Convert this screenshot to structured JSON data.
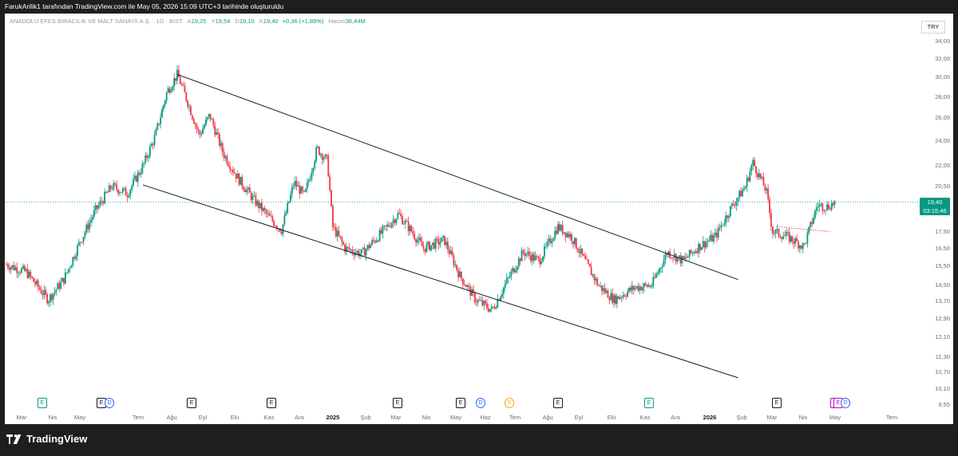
{
  "header": {
    "caption": "FarukArilik1 tarafından TradingView.com ile May 05, 2026 15:09 UTC+3 tarihinde oluşturuldu"
  },
  "legend": {
    "symbol": "ANADOLU EFES BIRACILIK VE MALT SANAYİİ A.Ş. · 1G · BIST",
    "open_label": "A",
    "open": "19,25",
    "high_label": "Y",
    "high": "19,54",
    "low_label": "D",
    "low": "19,10",
    "close_label": "K",
    "close": "19,40",
    "change": "+0,36 (+1,89%)",
    "volume_label": "Hacim",
    "volume": "36,44M"
  },
  "currency": "TRY",
  "price_tag": {
    "price": "19,40",
    "countdown": "03:15:46"
  },
  "brand": {
    "name": "TradingView"
  },
  "colors": {
    "up": "#089981",
    "down": "#f23645",
    "line": "#131722",
    "grid_bg": "#ffffff"
  },
  "events": [
    {
      "letter": "E",
      "type": "earn"
    },
    {
      "letter": "E",
      "type": "plain"
    },
    {
      "letter": "D",
      "type": "div"
    },
    {
      "letter": "E",
      "type": "plain"
    },
    {
      "letter": "E",
      "type": "plain"
    },
    {
      "letter": "E",
      "type": "plain"
    },
    {
      "letter": "E",
      "type": "plain"
    },
    {
      "letter": "D",
      "type": "div"
    },
    {
      "letter": "S",
      "type": "spl"
    },
    {
      "letter": "E",
      "type": "plain"
    },
    {
      "letter": "E",
      "type": "earn"
    },
    {
      "letter": "E",
      "type": "plain"
    },
    {
      "letter": "E",
      "type": "purple"
    },
    {
      "letter": "E",
      "type": "purple"
    },
    {
      "letter": "D",
      "type": "div"
    }
  ],
  "chart_data": {
    "type": "candlestick",
    "scale": "log",
    "y_ticks": [
      "34,00",
      "32,00",
      "30,00",
      "28,00",
      "26,00",
      "24,00",
      "22,00",
      "20,50",
      "19,00",
      "17,50",
      "16,50",
      "15,50",
      "14,50",
      "13,70",
      "12,90",
      "12,10",
      "11,30",
      "10,70",
      "10,10",
      "9,55"
    ],
    "y_tick_values": [
      34.0,
      32.0,
      30.0,
      28.0,
      26.0,
      24.0,
      22.0,
      20.5,
      19.0,
      17.5,
      16.5,
      15.5,
      14.5,
      13.7,
      12.9,
      12.1,
      11.3,
      10.7,
      10.1,
      9.55
    ],
    "x_ticks": [
      {
        "label": "Mar",
        "bold": false
      },
      {
        "label": "Nis",
        "bold": false
      },
      {
        "label": "May",
        "bold": false
      },
      {
        "label": "Tem",
        "bold": false
      },
      {
        "label": "Ağu",
        "bold": false
      },
      {
        "label": "Eyl",
        "bold": false
      },
      {
        "label": "Eki",
        "bold": false
      },
      {
        "label": "Kas",
        "bold": false
      },
      {
        "label": "Ara",
        "bold": false
      },
      {
        "label": "2025",
        "bold": true
      },
      {
        "label": "Şub",
        "bold": false
      },
      {
        "label": "Mar",
        "bold": false
      },
      {
        "label": "Nis",
        "bold": false
      },
      {
        "label": "May",
        "bold": false
      },
      {
        "label": "Haz",
        "bold": false
      },
      {
        "label": "Tem",
        "bold": false
      },
      {
        "label": "Ağu",
        "bold": false
      },
      {
        "label": "Eyl",
        "bold": false
      },
      {
        "label": "Eki",
        "bold": false
      },
      {
        "label": "Kas",
        "bold": false
      },
      {
        "label": "Ara",
        "bold": false
      },
      {
        "label": "2026",
        "bold": true
      },
      {
        "label": "Şub",
        "bold": false
      },
      {
        "label": "Mar",
        "bold": false
      },
      {
        "label": "Nis",
        "bold": false
      },
      {
        "label": "May",
        "bold": false
      },
      {
        "label": "Tem",
        "bold": false
      }
    ],
    "price_path": [
      [
        "2024-03-01",
        15.6
      ],
      [
        "2024-03-20",
        15.2
      ],
      [
        "2024-04-10",
        13.8
      ],
      [
        "2024-04-25",
        14.8
      ],
      [
        "2024-05-10",
        16.8
      ],
      [
        "2024-05-25",
        18.8
      ],
      [
        "2024-06-10",
        20.5
      ],
      [
        "2024-06-25",
        20.0
      ],
      [
        "2024-07-10",
        22.0
      ],
      [
        "2024-07-22",
        24.5
      ],
      [
        "2024-08-02",
        28.5
      ],
      [
        "2024-08-12",
        30.3
      ],
      [
        "2024-08-22",
        27.5
      ],
      [
        "2024-09-02",
        24.5
      ],
      [
        "2024-09-12",
        26.3
      ],
      [
        "2024-09-25",
        23.0
      ],
      [
        "2024-10-10",
        21.0
      ],
      [
        "2024-10-25",
        19.5
      ],
      [
        "2024-11-08",
        18.4
      ],
      [
        "2024-11-20",
        17.6
      ],
      [
        "2024-12-02",
        20.8
      ],
      [
        "2024-12-12",
        19.8
      ],
      [
        "2024-12-24",
        23.4
      ],
      [
        "2025-01-03",
        22.4
      ],
      [
        "2025-01-08",
        17.8
      ],
      [
        "2025-01-20",
        16.5
      ],
      [
        "2025-02-05",
        16.2
      ],
      [
        "2025-02-25",
        17.5
      ],
      [
        "2025-03-12",
        18.6
      ],
      [
        "2025-03-25",
        17.5
      ],
      [
        "2025-04-05",
        16.5
      ],
      [
        "2025-04-25",
        17.0
      ],
      [
        "2025-05-10",
        15.0
      ],
      [
        "2025-05-25",
        13.8
      ],
      [
        "2025-06-10",
        13.3
      ],
      [
        "2025-06-25",
        14.8
      ],
      [
        "2025-07-10",
        16.3
      ],
      [
        "2025-07-25",
        15.8
      ],
      [
        "2025-08-12",
        17.8
      ],
      [
        "2025-08-25",
        17.2
      ],
      [
        "2025-09-05",
        16.0
      ],
      [
        "2025-09-20",
        14.5
      ],
      [
        "2025-10-05",
        13.8
      ],
      [
        "2025-10-25",
        14.4
      ],
      [
        "2025-11-10",
        14.5
      ],
      [
        "2025-11-25",
        16.3
      ],
      [
        "2025-12-10",
        15.8
      ],
      [
        "2025-12-25",
        16.6
      ],
      [
        "2026-01-10",
        17.2
      ],
      [
        "2026-01-25",
        19.0
      ],
      [
        "2026-02-08",
        20.5
      ],
      [
        "2026-02-15",
        22.3
      ],
      [
        "2026-02-28",
        20.2
      ],
      [
        "2026-03-06",
        17.5
      ],
      [
        "2026-03-20",
        17.2
      ],
      [
        "2026-04-05",
        16.6
      ],
      [
        "2026-04-18",
        19.2
      ],
      [
        "2026-04-28",
        19.1
      ],
      [
        "2026-05-05",
        19.4
      ]
    ],
    "last_close": 19.4,
    "trendlines": [
      {
        "from": [
          "2024-08-12",
          30.3
        ],
        "to": [
          "2026-02-01",
          14.8
        ]
      },
      {
        "from": [
          "2024-07-10",
          20.6
        ],
        "to": [
          "2026-02-01",
          10.5
        ]
      },
      {
        "from": [
          "2026-03-10",
          17.8
        ],
        "to": [
          "2026-04-30",
          17.5
        ],
        "style": "dotted"
      }
    ]
  }
}
